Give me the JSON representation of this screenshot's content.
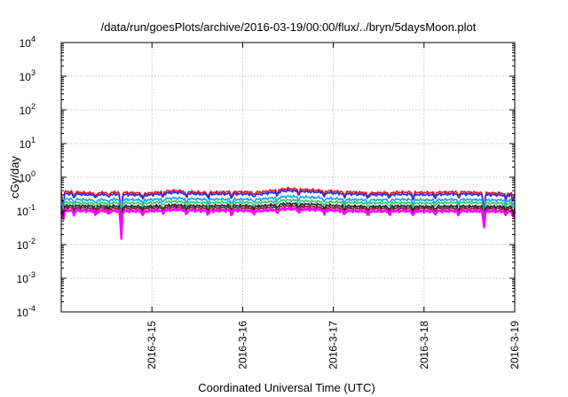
{
  "chart_data": {
    "type": "line",
    "title": "/data/run/goesPlots/archive/2016-03-19/00:00/flux/../bryn/5daysMoon.plot",
    "xlabel": "Coordinated Universal Time (UTC)",
    "ylabel": "cGy/day",
    "yscale": "log",
    "ylim": [
      0.0001,
      10000
    ],
    "y_ticks": [
      {
        "base": "10",
        "exp": "-4",
        "value": 0.0001
      },
      {
        "base": "10",
        "exp": "-3",
        "value": 0.001
      },
      {
        "base": "10",
        "exp": "-2",
        "value": 0.01
      },
      {
        "base": "10",
        "exp": "-1",
        "value": 0.1
      },
      {
        "base": "10",
        "exp": "0",
        "value": 1
      },
      {
        "base": "10",
        "exp": "1",
        "value": 10
      },
      {
        "base": "10",
        "exp": "2",
        "value": 100
      },
      {
        "base": "10",
        "exp": "3",
        "value": 1000
      },
      {
        "base": "10",
        "exp": "4",
        "value": 10000
      }
    ],
    "xlim": [
      "2016-03-14 00:00",
      "2016-03-19 00:00"
    ],
    "x_ticks": [
      "2016-3-15",
      "2016-3-16",
      "2016-3-17",
      "2016-3-18",
      "2016-3-19"
    ],
    "grid": true,
    "series": [
      {
        "color": "#e8141e",
        "values": [
          0.38,
          0.34,
          0.36,
          0.33,
          0.4,
          0.35,
          0.37,
          0.36,
          0.46,
          0.41,
          0.37,
          0.34,
          0.36,
          0.35,
          0.37,
          0.34,
          0.33
        ]
      },
      {
        "color": "#2a2ae6",
        "values": [
          0.33,
          0.3,
          0.31,
          0.29,
          0.35,
          0.31,
          0.32,
          0.31,
          0.4,
          0.36,
          0.32,
          0.3,
          0.31,
          0.3,
          0.32,
          0.3,
          0.29
        ]
      },
      {
        "color": "#1aa3e8",
        "values": [
          0.23,
          0.21,
          0.22,
          0.21,
          0.24,
          0.22,
          0.22,
          0.22,
          0.27,
          0.25,
          0.22,
          0.21,
          0.22,
          0.21,
          0.22,
          0.21,
          0.21
        ]
      },
      {
        "color": "#2ecc71",
        "values": [
          0.18,
          0.17,
          0.175,
          0.17,
          0.19,
          0.175,
          0.18,
          0.175,
          0.21,
          0.19,
          0.18,
          0.17,
          0.175,
          0.17,
          0.18,
          0.17,
          0.17
        ]
      },
      {
        "color": "#222222",
        "values": [
          0.145,
          0.14,
          0.14,
          0.135,
          0.15,
          0.14,
          0.145,
          0.14,
          0.165,
          0.155,
          0.14,
          0.135,
          0.14,
          0.135,
          0.14,
          0.135,
          0.135
        ]
      },
      {
        "color": "#8b1a3a",
        "values": [
          0.125,
          0.12,
          0.12,
          0.118,
          0.13,
          0.12,
          0.124,
          0.12,
          0.14,
          0.13,
          0.12,
          0.118,
          0.12,
          0.118,
          0.12,
          0.118,
          0.118
        ]
      },
      {
        "color": "#ff00ff",
        "values": [
          0.105,
          0.1,
          0.1,
          0.098,
          0.11,
          0.1,
          0.104,
          0.1,
          0.115,
          0.11,
          0.1,
          0.098,
          0.1,
          0.098,
          0.1,
          0.098,
          0.098
        ]
      }
    ],
    "dips": [
      {
        "day": 0.02,
        "factor": 0.3
      },
      {
        "day": 0.14,
        "factor": 0.75
      },
      {
        "day": 0.38,
        "factor": 0.72
      },
      {
        "day": 0.52,
        "factor": 0.78
      },
      {
        "day": 0.66,
        "factor": 0.03
      },
      {
        "day": 0.9,
        "factor": 0.75
      },
      {
        "day": 1.12,
        "factor": 0.75
      },
      {
        "day": 1.38,
        "factor": 0.7
      },
      {
        "day": 1.62,
        "factor": 0.75
      },
      {
        "day": 1.88,
        "factor": 0.72
      },
      {
        "day": 2.12,
        "factor": 0.78
      },
      {
        "day": 2.38,
        "factor": 0.72
      },
      {
        "day": 2.62,
        "factor": 0.75
      },
      {
        "day": 2.9,
        "factor": 0.72
      },
      {
        "day": 3.12,
        "factor": 0.75
      },
      {
        "day": 3.38,
        "factor": 0.72
      },
      {
        "day": 3.62,
        "factor": 0.75
      },
      {
        "day": 3.88,
        "factor": 0.7
      },
      {
        "day": 4.12,
        "factor": 0.78
      },
      {
        "day": 4.38,
        "factor": 0.72
      },
      {
        "day": 4.66,
        "factor": 0.15
      },
      {
        "day": 4.9,
        "factor": 0.7
      },
      {
        "day": 4.98,
        "factor": 0.65
      }
    ]
  }
}
